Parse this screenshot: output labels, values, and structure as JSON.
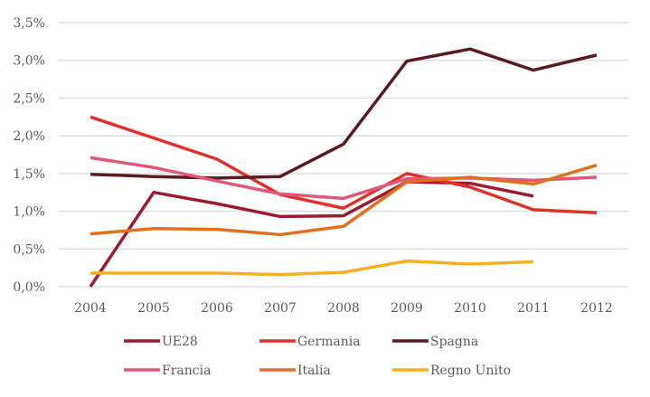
{
  "chart_data": {
    "type": "line",
    "title": "",
    "xlabel": "",
    "ylabel": "",
    "x": [
      "2004",
      "2005",
      "2006",
      "2007",
      "2008",
      "2009",
      "2010",
      "2011",
      "2012"
    ],
    "ylim": [
      0,
      3.5
    ],
    "yticks": [
      0,
      0.5,
      1.0,
      1.5,
      2.0,
      2.5,
      3.0,
      3.5
    ],
    "ytick_labels": [
      "0,0%",
      "0,5%",
      "1,0%",
      "1,5%",
      "2,0%",
      "2,5%",
      "3,0%",
      "3,5%"
    ],
    "grid": true,
    "legend_position": "bottom",
    "series": [
      {
        "name": "UE28",
        "color": "#9b1b30",
        "values": [
          0.0,
          1.25,
          1.1,
          0.93,
          0.94,
          1.39,
          1.37,
          1.2,
          null
        ]
      },
      {
        "name": "Germania",
        "color": "#e0302a",
        "values": [
          2.25,
          1.97,
          1.69,
          1.22,
          1.04,
          1.5,
          1.32,
          1.02,
          0.98
        ]
      },
      {
        "name": "Spagna",
        "color": "#5a1a22",
        "values": [
          1.49,
          1.46,
          1.44,
          1.46,
          1.89,
          2.99,
          3.15,
          2.87,
          3.07
        ]
      },
      {
        "name": "Francia",
        "color": "#e0577a",
        "values": [
          1.71,
          1.58,
          1.4,
          1.23,
          1.17,
          1.43,
          1.44,
          1.41,
          1.45
        ]
      },
      {
        "name": "Italia",
        "color": "#e07020",
        "values": [
          0.7,
          0.77,
          0.76,
          0.69,
          0.8,
          1.39,
          1.45,
          1.36,
          1.61
        ]
      },
      {
        "name": "Regno Unito",
        "color": "#f5b021",
        "values": [
          0.18,
          0.18,
          0.18,
          0.16,
          0.19,
          0.34,
          0.3,
          0.33,
          null
        ]
      }
    ]
  }
}
